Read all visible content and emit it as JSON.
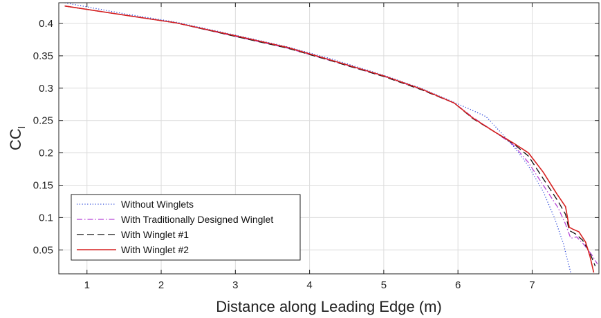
{
  "chart_data": {
    "type": "line",
    "title": "",
    "xlabel": "Distance along Leading Edge (m)",
    "ylabel": "CC",
    "ylabel_subscript": "l",
    "xlim": [
      0.62,
      7.9
    ],
    "ylim": [
      0.013,
      0.432
    ],
    "xticks": [
      1,
      2,
      3,
      4,
      5,
      6,
      7
    ],
    "yticks": [
      0.05,
      0.1,
      0.15,
      0.2,
      0.25,
      0.3,
      0.35,
      0.4
    ],
    "ytick_labels": [
      "0.05",
      "0.1",
      "0.15",
      "0.2",
      "0.25",
      "0.3",
      "0.35",
      "0.4"
    ],
    "grid": true,
    "legend_position": "bottom-left",
    "series": [
      {
        "name": "Without Winglets",
        "color": "#2b47d9",
        "dash": "dotted",
        "x": [
          0.7,
          1.5,
          2.2,
          3.0,
          3.7,
          4.3,
          5.0,
          5.5,
          5.95,
          6.15,
          6.38,
          6.55,
          6.75,
          6.95,
          7.15,
          7.3,
          7.42,
          7.52
        ],
        "y": [
          0.432,
          0.415,
          0.402,
          0.382,
          0.364,
          0.345,
          0.32,
          0.3,
          0.278,
          0.268,
          0.256,
          0.235,
          0.21,
          0.18,
          0.14,
          0.1,
          0.06,
          0.015
        ]
      },
      {
        "name": "With Traditionally Designed Winglet",
        "color": "#b845d6",
        "dash": "dashdot",
        "x": [
          0.7,
          1.5,
          2.2,
          3.0,
          3.7,
          4.3,
          5.0,
          5.5,
          5.95,
          6.2,
          6.5,
          6.75,
          6.95,
          7.15,
          7.35,
          7.45,
          7.52,
          7.6,
          7.7,
          7.8,
          7.88
        ],
        "y": [
          0.427,
          0.413,
          0.401,
          0.38,
          0.362,
          0.342,
          0.318,
          0.298,
          0.277,
          0.255,
          0.232,
          0.212,
          0.185,
          0.15,
          0.115,
          0.09,
          0.068,
          0.07,
          0.058,
          0.043,
          0.028
        ]
      },
      {
        "name": "With Winglet #1",
        "color": "#111111",
        "dash": "dashed",
        "x": [
          0.7,
          1.5,
          2.2,
          3.0,
          3.7,
          4.3,
          5.0,
          5.5,
          5.95,
          6.2,
          6.5,
          6.75,
          6.95,
          7.15,
          7.35,
          7.45,
          7.5,
          7.58,
          7.68,
          7.78,
          7.85
        ],
        "y": [
          0.427,
          0.413,
          0.401,
          0.38,
          0.362,
          0.342,
          0.318,
          0.298,
          0.277,
          0.253,
          0.232,
          0.214,
          0.195,
          0.16,
          0.125,
          0.105,
          0.08,
          0.075,
          0.065,
          0.045,
          0.025
        ]
      },
      {
        "name": "With Winglet #2",
        "color": "#d62020",
        "dash": "solid",
        "x": [
          0.7,
          1.5,
          2.2,
          3.0,
          3.7,
          4.3,
          5.0,
          5.5,
          5.95,
          6.2,
          6.5,
          6.75,
          6.95,
          7.15,
          7.33,
          7.45,
          7.5,
          7.55,
          7.63,
          7.72,
          7.78,
          7.83
        ],
        "y": [
          0.427,
          0.413,
          0.401,
          0.381,
          0.363,
          0.343,
          0.319,
          0.299,
          0.277,
          0.254,
          0.232,
          0.215,
          0.2,
          0.17,
          0.137,
          0.117,
          0.085,
          0.082,
          0.078,
          0.062,
          0.04,
          0.015
        ]
      }
    ]
  }
}
